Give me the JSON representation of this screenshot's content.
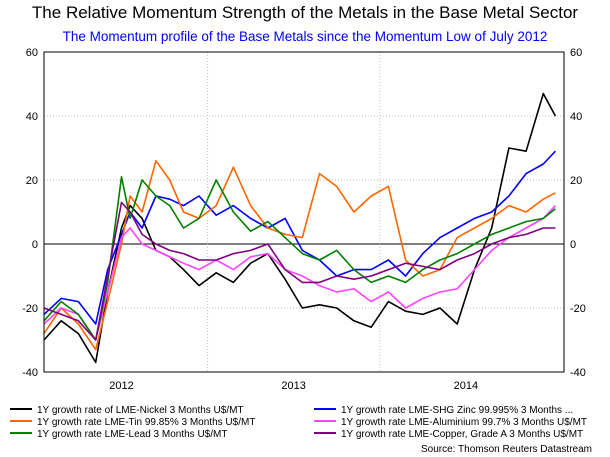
{
  "title": "The Relative Momentum Strength of the Metals in the Base Metal Sector",
  "subtitle": "The Momentum profile of the Base Metals since the Momentum Low of July 2012",
  "source": "Source: Thomson Reuters Datastream",
  "colors": {
    "title": "#000000",
    "subtitle": "#0000ff",
    "grid": "#c0c0c0",
    "zero_line": "#000000"
  },
  "chart_data": {
    "type": "line",
    "title": "The Relative Momentum Strength of the Metals in the Base Metal Sector",
    "subtitle": "The Momentum profile of the Base Metals since the Momentum Low of July 2012",
    "xlabel": "",
    "ylabel": "",
    "x_ticks": [
      "2012",
      "2013",
      "2014"
    ],
    "x_tick_positions": [
      2012.0,
      2013.0,
      2014.0
    ],
    "xlim": [
      2011.55,
      2014.57
    ],
    "y_ticks": [
      -40,
      -20,
      0,
      20,
      40,
      60
    ],
    "ylim": [
      -40,
      60
    ],
    "y_axis_both_sides": true,
    "grid": true,
    "legend_position": "bottom",
    "x": [
      2011.55,
      2011.65,
      2011.75,
      2011.85,
      2011.92,
      2012.0,
      2012.05,
      2012.12,
      2012.2,
      2012.28,
      2012.36,
      2012.45,
      2012.55,
      2012.65,
      2012.75,
      2012.85,
      2012.95,
      2013.05,
      2013.15,
      2013.25,
      2013.35,
      2013.45,
      2013.55,
      2013.65,
      2013.75,
      2013.85,
      2013.95,
      2014.05,
      2014.15,
      2014.25,
      2014.35,
      2014.45,
      2014.52
    ],
    "series": [
      {
        "name": "1Y growth rate of LME-Nickel 3 Months U$/MT",
        "color": "#000000",
        "values": [
          -30,
          -24,
          -28,
          -37,
          -15,
          5,
          12,
          8,
          -2,
          -4,
          -8,
          -13,
          -9,
          -12,
          -6,
          -3,
          -11,
          -20,
          -19,
          -20,
          -24,
          -26,
          -18,
          -21,
          -22,
          -20,
          -25,
          -8,
          5,
          30,
          29,
          47,
          40
        ]
      },
      {
        "name": "1Y growth rate LME-SHG Zinc 99.995% 3 Months ...",
        "color": "#0000ff",
        "values": [
          -22,
          -17,
          -18,
          -25,
          -8,
          3,
          10,
          5,
          15,
          14,
          12,
          15,
          9,
          12,
          8,
          5,
          8,
          -2,
          -5,
          -10,
          -8,
          -8,
          -5,
          -10,
          -3,
          2,
          5,
          8,
          10,
          15,
          22,
          25,
          29
        ]
      },
      {
        "name": "1Y growth rate LME-Tin 99.85% 3 Months U$/MT",
        "color": "#ff6600",
        "values": [
          -28,
          -20,
          -25,
          -33,
          -18,
          0,
          15,
          10,
          26,
          20,
          10,
          8,
          12,
          24,
          12,
          5,
          3,
          2,
          22,
          18,
          10,
          15,
          18,
          -5,
          -10,
          -8,
          2,
          5,
          8,
          12,
          10,
          14,
          16
        ]
      },
      {
        "name": "1Y growth rate LME-Aluminium 99.7% 3 Months U$/MT",
        "color": "#ff44ff",
        "values": [
          -25,
          -20,
          -22,
          -30,
          -15,
          2,
          5,
          0,
          -2,
          -4,
          -6,
          -8,
          -5,
          -8,
          -4,
          -3,
          -8,
          -10,
          -13,
          -15,
          -14,
          -18,
          -15,
          -20,
          -17,
          -15,
          -14,
          -8,
          -2,
          2,
          5,
          8,
          12
        ]
      },
      {
        "name": "1Y growth rate LME-Lead 3 Months U$/MT",
        "color": "#008000",
        "values": [
          -24,
          -18,
          -22,
          -30,
          -12,
          21,
          8,
          20,
          15,
          12,
          5,
          8,
          20,
          10,
          4,
          7,
          2,
          -3,
          -5,
          -2,
          -8,
          -12,
          -10,
          -12,
          -8,
          -5,
          -3,
          0,
          3,
          5,
          7,
          8,
          11
        ]
      },
      {
        "name": "1Y growth rate LME-Copper, Grade A 3 Months U$/MT",
        "color": "#800080",
        "values": [
          -20,
          -22,
          -24,
          -30,
          -10,
          13,
          10,
          3,
          0,
          -2,
          -3,
          -5,
          -5,
          -3,
          -2,
          0,
          -8,
          -12,
          -12,
          -10,
          -11,
          -10,
          -8,
          -6,
          -7,
          -8,
          -5,
          -3,
          0,
          2,
          3,
          5,
          5
        ]
      }
    ]
  },
  "legend": [
    {
      "label": "1Y growth rate of LME-Nickel 3 Months U$/MT",
      "color": "#000000"
    },
    {
      "label": "1Y growth rate LME-SHG Zinc 99.995% 3 Months ...",
      "color": "#0000ff"
    },
    {
      "label": "1Y growth rate LME-Tin 99.85% 3 Months U$/MT",
      "color": "#ff6600"
    },
    {
      "label": "1Y growth rate LME-Aluminium 99.7% 3 Months U$/MT",
      "color": "#ff44ff"
    },
    {
      "label": "1Y growth rate LME-Lead 3 Months U$/MT",
      "color": "#008000"
    },
    {
      "label": "1Y growth rate LME-Copper, Grade A 3 Months U$/MT",
      "color": "#800080"
    }
  ]
}
